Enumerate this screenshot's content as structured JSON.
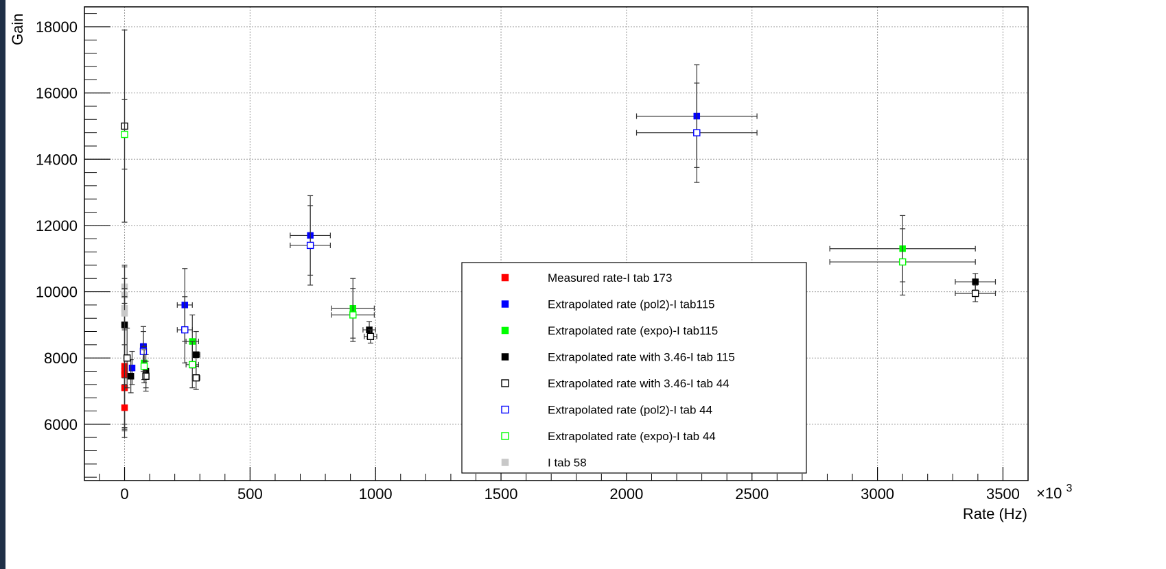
{
  "chart_data": {
    "type": "scatter",
    "title": "",
    "xlabel": "Rate (Hz)",
    "ylabel": "Gain",
    "x_multiplier_label": "×10",
    "x_multiplier_exp": "3",
    "xlim": [
      -160,
      3600
    ],
    "ylim": [
      4300,
      18600
    ],
    "xticks": [
      0,
      500,
      1000,
      1500,
      2000,
      2500,
      3000,
      3500
    ],
    "xtick_labels": [
      "0",
      "500",
      "1000",
      "1500",
      "2000",
      "2500",
      "3000",
      "3500"
    ],
    "yticks": [
      6000,
      8000,
      10000,
      12000,
      14000,
      16000,
      18000
    ],
    "ytick_labels": [
      "6000",
      "8000",
      "10000",
      "12000",
      "14000",
      "16000",
      "18000"
    ],
    "grid": true,
    "legend_position": "bottom-center",
    "series": [
      {
        "name": "Measured rate-I tab 173",
        "color": "#ff0000",
        "marker": "filled-square",
        "points": [
          {
            "x": 0,
            "y": 7750,
            "ey": 1900
          },
          {
            "x": 0,
            "y": 7600,
            "ey": 1700
          },
          {
            "x": 0,
            "y": 7500,
            "ey": 1500
          },
          {
            "x": 0,
            "y": 7100,
            "ey": 1300
          },
          {
            "x": 0,
            "y": 6500,
            "ey": 900
          }
        ]
      },
      {
        "name": "Extrapolated rate (pol2)-I tab115",
        "color": "#0000ff",
        "marker": "filled-square",
        "points": [
          {
            "x": 30,
            "y": 7700,
            "ey": 500,
            "ex": 8
          },
          {
            "x": 75,
            "y": 8350,
            "ey": 600,
            "ex": 12
          },
          {
            "x": 240,
            "y": 9600,
            "ey": 1100,
            "ex": 30
          },
          {
            "x": 740,
            "y": 11700,
            "ey": 1200,
            "ex": 80
          },
          {
            "x": 2280,
            "y": 15300,
            "ey": 1550,
            "ex": 240
          }
        ]
      },
      {
        "name": "Extrapolated rate (expo)-I tab115",
        "color": "#00ff00",
        "marker": "filled-square",
        "points": [
          {
            "x": 78,
            "y": 7850,
            "ey": 500,
            "ex": 10
          },
          {
            "x": 270,
            "y": 8500,
            "ey": 800,
            "ex": 25
          },
          {
            "x": 910,
            "y": 9500,
            "ey": 900,
            "ex": 85
          },
          {
            "x": 3100,
            "y": 11300,
            "ey": 1000,
            "ex": 290
          }
        ]
      },
      {
        "name": "Extrapolated rate with 3.46-I tab 115",
        "color": "#000000",
        "marker": "filled-square",
        "points": [
          {
            "x": 0,
            "y": 9000,
            "ey": 1800
          },
          {
            "x": 25,
            "y": 7450,
            "ey": 500,
            "ex": 8
          },
          {
            "x": 85,
            "y": 7600,
            "ey": 500,
            "ex": 10
          },
          {
            "x": 285,
            "y": 8100,
            "ey": 700,
            "ex": 15
          },
          {
            "x": 975,
            "y": 8850,
            "ey": 250,
            "ex": 25
          },
          {
            "x": 3390,
            "y": 10300,
            "ey": 250,
            "ex": 80
          }
        ]
      },
      {
        "name": "Extrapolated rate with 3.46-I tab 44",
        "color": "#000000",
        "marker": "open-square",
        "points": [
          {
            "x": 0,
            "y": 15000,
            "ey": 2900
          },
          {
            "x": 10,
            "y": 8000,
            "ey": 900
          },
          {
            "x": 85,
            "y": 7450,
            "ey": 450,
            "ex": 10
          },
          {
            "x": 285,
            "y": 7400,
            "ey": 350,
            "ex": 15
          },
          {
            "x": 980,
            "y": 8650,
            "ey": 200,
            "ex": 25
          },
          {
            "x": 3390,
            "y": 9950,
            "ey": 250,
            "ex": 80
          }
        ]
      },
      {
        "name": "Extrapolated rate (pol2)-I tab 44",
        "color": "#0000ff",
        "marker": "open-square",
        "points": [
          {
            "x": 75,
            "y": 8200,
            "ey": 600,
            "ex": 12
          },
          {
            "x": 240,
            "y": 8850,
            "ey": 1000,
            "ex": 30
          },
          {
            "x": 740,
            "y": 11400,
            "ey": 1200,
            "ex": 80
          },
          {
            "x": 2280,
            "y": 14800,
            "ey": 1500,
            "ex": 240
          }
        ]
      },
      {
        "name": "Extrapolated rate (expo)-I tab 44",
        "color": "#00ff00",
        "marker": "open-square",
        "points": [
          {
            "x": 0,
            "y": 14750,
            "ey": 1050
          },
          {
            "x": 78,
            "y": 7750,
            "ey": 500,
            "ex": 10
          },
          {
            "x": 270,
            "y": 7800,
            "ey": 700,
            "ex": 25
          },
          {
            "x": 910,
            "y": 9300,
            "ey": 800,
            "ex": 85
          },
          {
            "x": 3100,
            "y": 10900,
            "ey": 1000,
            "ex": 290
          }
        ]
      },
      {
        "name": "I tab 58",
        "color": "#c8c8c8",
        "marker": "filled-square",
        "points": [
          {
            "x": 0,
            "y": 10150,
            "ey": 600
          },
          {
            "x": 0,
            "y": 9900,
            "ey": 500
          },
          {
            "x": 0,
            "y": 9500,
            "ey": 600
          },
          {
            "x": 0,
            "y": 9350,
            "ey": 500
          }
        ]
      }
    ]
  }
}
